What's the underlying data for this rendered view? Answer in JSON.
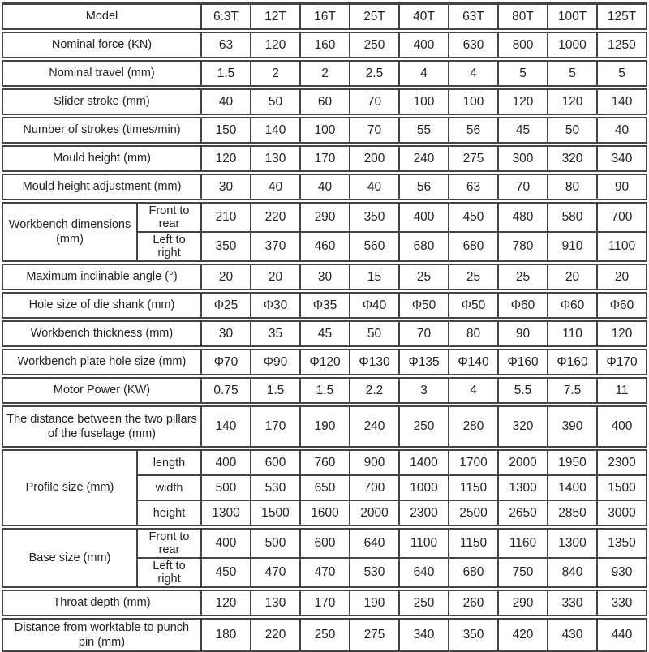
{
  "table": {
    "rows": [
      {
        "label": "Model",
        "values": [
          "6.3T",
          "12T",
          "16T",
          "25T",
          "40T",
          "63T",
          "80T",
          "100T",
          "125T"
        ]
      },
      {
        "label": "Nominal force (KN)",
        "values": [
          "63",
          "120",
          "160",
          "250",
          "400",
          "630",
          "800",
          "1000",
          "1250"
        ]
      },
      {
        "label": "Nominal travel (mm)",
        "values": [
          "1.5",
          "2",
          "2",
          "2.5",
          "4",
          "4",
          "5",
          "5",
          "5"
        ]
      },
      {
        "label": "Slider stroke (mm)",
        "values": [
          "40",
          "50",
          "60",
          "70",
          "100",
          "100",
          "120",
          "120",
          "140"
        ]
      },
      {
        "label": "Number of strokes (times/min)",
        "values": [
          "150",
          "140",
          "100",
          "70",
          "55",
          "56",
          "45",
          "50",
          "40"
        ]
      },
      {
        "label": "Mould height (mm)",
        "values": [
          "120",
          "130",
          "170",
          "200",
          "240",
          "275",
          "300",
          "320",
          "340"
        ]
      },
      {
        "label": "Mould height adjustment (mm)",
        "values": [
          "30",
          "40",
          "40",
          "40",
          "56",
          "63",
          "70",
          "80",
          "90"
        ]
      },
      {
        "label": "Workbench dimensions (mm)",
        "subrows": [
          {
            "label": "Front to rear",
            "values": [
              "210",
              "220",
              "290",
              "350",
              "400",
              "450",
              "480",
              "580",
              "700"
            ]
          },
          {
            "label": "Left to right",
            "values": [
              "350",
              "370",
              "460",
              "560",
              "680",
              "680",
              "780",
              "910",
              "1100"
            ]
          }
        ]
      },
      {
        "label": "Maximum inclinable angle (°)",
        "values": [
          "20",
          "20",
          "30",
          "15",
          "25",
          "25",
          "25",
          "20",
          "20"
        ]
      },
      {
        "label": "Hole size of die shank (mm)",
        "values": [
          "Φ25",
          "Φ30",
          "Φ35",
          "Φ40",
          "Φ50",
          "Φ50",
          "Φ60",
          "Φ60",
          "Φ60"
        ]
      },
      {
        "label": "Workbench thickness (mm)",
        "values": [
          "30",
          "35",
          "45",
          "50",
          "70",
          "80",
          "90",
          "110",
          "120"
        ]
      },
      {
        "label": "Workbench plate hole size (mm)",
        "values": [
          "Φ70",
          "Φ90",
          "Φ120",
          "Φ130",
          "Φ135",
          "Φ140",
          "Φ160",
          "Φ160",
          "Φ170"
        ]
      },
      {
        "label": "Motor Power (KW)",
        "values": [
          "0.75",
          "1.5",
          "1.5",
          "2.2",
          "3",
          "4",
          "5.5",
          "7.5",
          "11"
        ]
      },
      {
        "label": "The distance between the two pillars of the fuselage (mm)",
        "tall": true,
        "values": [
          "140",
          "170",
          "190",
          "240",
          "250",
          "280",
          "320",
          "390",
          "400"
        ]
      },
      {
        "label": "Profile size (mm)",
        "subrows": [
          {
            "label": "length",
            "values": [
              "400",
              "600",
              "760",
              "900",
              "1400",
              "1700",
              "2000",
              "1950",
              "2300"
            ]
          },
          {
            "label": "width",
            "values": [
              "500",
              "530",
              "650",
              "700",
              "1000",
              "1150",
              "1300",
              "1400",
              "1500"
            ]
          },
          {
            "label": "height",
            "values": [
              "1300",
              "1500",
              "1600",
              "2000",
              "2300",
              "2500",
              "2650",
              "2850",
              "3000"
            ]
          }
        ]
      },
      {
        "label": "Base size (mm)",
        "subrows": [
          {
            "label": "Front to rear",
            "values": [
              "400",
              "500",
              "600",
              "640",
              "1100",
              "1150",
              "1160",
              "1300",
              "1350"
            ]
          },
          {
            "label": "Left to right",
            "values": [
              "450",
              "470",
              "470",
              "530",
              "640",
              "680",
              "750",
              "840",
              "930"
            ]
          }
        ]
      },
      {
        "label": "Throat depth (mm)",
        "values": [
          "120",
          "130",
          "170",
          "190",
          "250",
          "260",
          "290",
          "330",
          "330"
        ]
      },
      {
        "label": "Distance from worktable to punch pin (mm)",
        "values": [
          "180",
          "220",
          "250",
          "275",
          "340",
          "350",
          "420",
          "430",
          "440"
        ]
      }
    ],
    "colors": {
      "border": "#454545",
      "text": "#232323",
      "background": "#ffffff"
    }
  }
}
